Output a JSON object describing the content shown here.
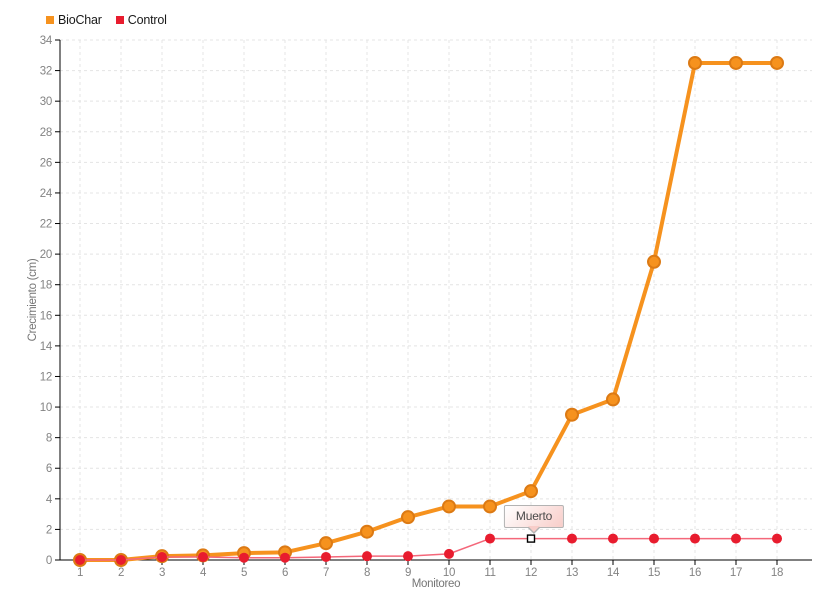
{
  "chart_data": {
    "type": "line",
    "title": "",
    "xlabel": "Monitoreo",
    "ylabel": "Crecimiento (cm)",
    "x": [
      1,
      2,
      3,
      4,
      5,
      6,
      7,
      8,
      9,
      10,
      11,
      12,
      13,
      14,
      15,
      16,
      17,
      18
    ],
    "xticks": [
      "1",
      "2",
      "3",
      "4",
      "5",
      "6",
      "7",
      "8",
      "9",
      "10",
      "11",
      "12",
      "13",
      "14",
      "15",
      "16",
      "17",
      "18"
    ],
    "yticks": [
      0,
      2,
      4,
      6,
      8,
      10,
      12,
      14,
      16,
      18,
      20,
      22,
      24,
      26,
      28,
      30,
      32,
      34
    ],
    "ylim": [
      0,
      34
    ],
    "grid": true,
    "legend_position": "top-left",
    "series": [
      {
        "name": "BioChar",
        "color": "#f6921e",
        "marker_border": "#dc7a14",
        "line_width": 4,
        "marker_radius": 6,
        "values": [
          0,
          0,
          0.25,
          0.3,
          0.45,
          0.5,
          1.1,
          1.85,
          2.8,
          3.5,
          3.5,
          4.5,
          9.5,
          10.5,
          19.5,
          32.5,
          32.5,
          32.5
        ]
      },
      {
        "name": "Control",
        "color": "#e81c2e",
        "line_color": "#f4677a",
        "line_width": 1.5,
        "marker_radius": 5,
        "values": [
          0,
          0,
          0.2,
          0.2,
          0.15,
          0.15,
          0.2,
          0.25,
          0.25,
          0.4,
          1.4,
          1.4,
          1.4,
          1.4,
          1.4,
          1.4,
          1.4,
          1.4
        ]
      }
    ],
    "annotation": {
      "text": "Muerto",
      "series": "Control",
      "x": 12,
      "y": 1.4,
      "marker": "white-square"
    }
  },
  "theme": {
    "background": "#ffffff",
    "grid_color": "#e4e4e4",
    "axis_color": "#000000",
    "tick_label_color": "#838383",
    "axis_title_color": "#757575",
    "legend_text_color": "#1a1a1a",
    "tooltip_background_top": "#ffffff",
    "tooltip_background_bottom": "#f8cdc9",
    "tooltip_border": "#b3b3b3",
    "tooltip_text_color": "#4a4a4a"
  }
}
